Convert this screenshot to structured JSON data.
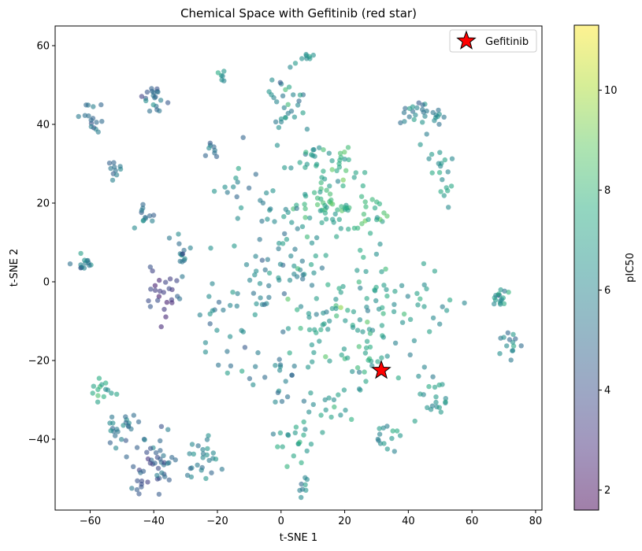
{
  "chart_data": {
    "type": "scatter",
    "title": "Chemical Space with Gefitinib (red star)",
    "xlabel": "t-SNE 1",
    "ylabel": "t-SNE 2",
    "xlim": [
      -71,
      82
    ],
    "ylim": [
      -58,
      65
    ],
    "xticks": [
      -60,
      -40,
      -20,
      0,
      20,
      40,
      60,
      80
    ],
    "yticks": [
      -40,
      -20,
      0,
      20,
      40,
      60
    ],
    "xtick_labels": [
      "−60",
      "−40",
      "−20",
      "0",
      "20",
      "40",
      "60",
      "80"
    ],
    "ytick_labels": [
      "−40",
      "−20",
      "0",
      "20",
      "40",
      "60"
    ],
    "grid": false,
    "colorbar": {
      "label": "pIC50",
      "range": [
        1.6,
        11.3
      ],
      "ticks": [
        2,
        4,
        6,
        8,
        10
      ],
      "colormap": "viridis"
    },
    "legend": {
      "position": "top-right",
      "entries": [
        "Gefitinib"
      ]
    },
    "highlight": {
      "name": "Gefitinib",
      "x": 31.5,
      "y": -22.5,
      "marker": "star",
      "color": "#ff0000"
    },
    "clusters": [
      {
        "x": -62.0,
        "y": 4.0,
        "n": 14,
        "spread": 1.6,
        "pic50": 5.6
      },
      {
        "x": -59.0,
        "y": 42.0,
        "n": 16,
        "spread": 2.0,
        "pic50": 5.0
      },
      {
        "x": -52.0,
        "y": 28.5,
        "n": 10,
        "spread": 1.3,
        "pic50": 5.1
      },
      {
        "x": -41.0,
        "y": 46.5,
        "n": 20,
        "spread": 2.2,
        "pic50": 5.1
      },
      {
        "x": -43.0,
        "y": 16.5,
        "n": 12,
        "spread": 1.6,
        "pic50": 5.0
      },
      {
        "x": -55.0,
        "y": -27.5,
        "n": 14,
        "spread": 2.2,
        "pic50": 7.2
      },
      {
        "x": -50.0,
        "y": -37.0,
        "n": 22,
        "spread": 2.6,
        "pic50": 5.6
      },
      {
        "x": -40.0,
        "y": -46.0,
        "n": 50,
        "spread": 4.0,
        "pic50": 4.6
      },
      {
        "x": -24.0,
        "y": -46.0,
        "n": 24,
        "spread": 3.0,
        "pic50": 5.8
      },
      {
        "x": -37.0,
        "y": -3.0,
        "n": 24,
        "spread": 3.2,
        "pic50": 3.4
      },
      {
        "x": -31.0,
        "y": 7.5,
        "n": 14,
        "spread": 2.2,
        "pic50": 5.2
      },
      {
        "x": -22.0,
        "y": 33.5,
        "n": 8,
        "spread": 1.2,
        "pic50": 5.4
      },
      {
        "x": -18.0,
        "y": 52.0,
        "n": 6,
        "spread": 1.2,
        "pic50": 6.5
      },
      {
        "x": 2.0,
        "y": 46.0,
        "n": 30,
        "spread": 5.0,
        "pic50": 6.1
      },
      {
        "x": 8.0,
        "y": 57.0,
        "n": 8,
        "spread": 1.4,
        "pic50": 6.4
      },
      {
        "x": 10.0,
        "y": 32.0,
        "n": 12,
        "spread": 2.2,
        "pic50": 6.4
      },
      {
        "x": 20.0,
        "y": 31.0,
        "n": 14,
        "spread": 2.2,
        "pic50": 7.9
      },
      {
        "x": 15.0,
        "y": 20.0,
        "n": 60,
        "spread": 5.5,
        "pic50": 7.5
      },
      {
        "x": 27.0,
        "y": 17.0,
        "n": 20,
        "spread": 3.5,
        "pic50": 7.8
      },
      {
        "x": 43.0,
        "y": 41.5,
        "n": 24,
        "spread": 3.0,
        "pic50": 5.8
      },
      {
        "x": 49.0,
        "y": 43.0,
        "n": 6,
        "spread": 1.2,
        "pic50": 6.2
      },
      {
        "x": 49.5,
        "y": 30.0,
        "n": 12,
        "spread": 2.2,
        "pic50": 6.6
      },
      {
        "x": 52.0,
        "y": 23.0,
        "n": 6,
        "spread": 1.5,
        "pic50": 6.9
      },
      {
        "x": 68.0,
        "y": -4.5,
        "n": 16,
        "spread": 1.2,
        "pic50": 6.5
      },
      {
        "x": 73.0,
        "y": -15.0,
        "n": 14,
        "spread": 1.8,
        "pic50": 5.6
      },
      {
        "x": 48.0,
        "y": -30.0,
        "n": 20,
        "spread": 3.0,
        "pic50": 6.4
      },
      {
        "x": 33.0,
        "y": -39.0,
        "n": 14,
        "spread": 2.4,
        "pic50": 6.6
      },
      {
        "x": 4.0,
        "y": -40.0,
        "n": 20,
        "spread": 3.0,
        "pic50": 6.8
      },
      {
        "x": 12.0,
        "y": -12.0,
        "n": 30,
        "spread": 5.0,
        "pic50": 7.0
      },
      {
        "x": 25.0,
        "y": -5.0,
        "n": 40,
        "spread": 7.0,
        "pic50": 6.9
      },
      {
        "x": 40.0,
        "y": -8.0,
        "n": 30,
        "spread": 6.0,
        "pic50": 6.6
      },
      {
        "x": 28.0,
        "y": -20.0,
        "n": 24,
        "spread": 4.0,
        "pic50": 7.1
      },
      {
        "x": 0.0,
        "y": -26.0,
        "n": 20,
        "spread": 4.0,
        "pic50": 5.6
      },
      {
        "x": -5.0,
        "y": 5.0,
        "n": 40,
        "spread": 8.0,
        "pic50": 5.9
      },
      {
        "x": -20.0,
        "y": -10.0,
        "n": 24,
        "spread": 6.0,
        "pic50": 5.8
      },
      {
        "x": 6.0,
        "y": 5.0,
        "n": 30,
        "spread": 6.0,
        "pic50": 6.6
      },
      {
        "x": -10.0,
        "y": 23.0,
        "n": 20,
        "spread": 6.0,
        "pic50": 6.0
      },
      {
        "x": 6.0,
        "y": -52.0,
        "n": 8,
        "spread": 1.5,
        "pic50": 6.0
      },
      {
        "x": 18.0,
        "y": -31.0,
        "n": 14,
        "spread": 3.0,
        "pic50": 6.9
      }
    ]
  }
}
